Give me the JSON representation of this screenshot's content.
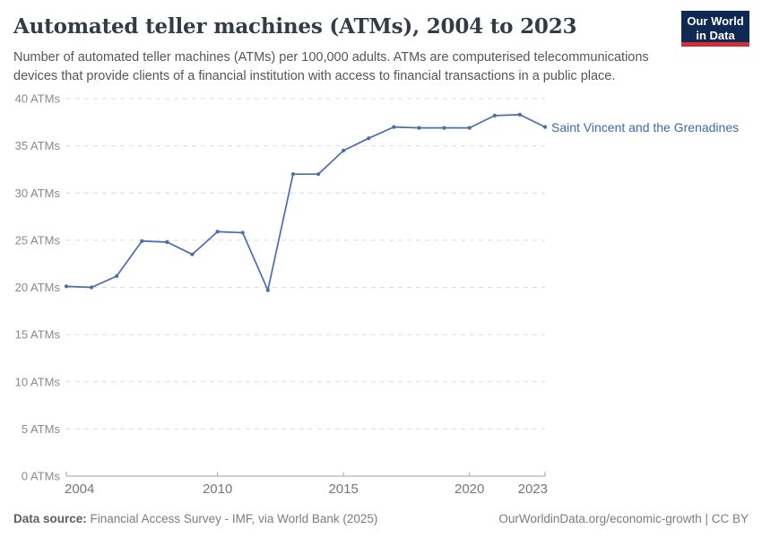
{
  "header": {
    "title": "Automated teller machines (ATMs), 2004 to 2023",
    "subtitle_lines": [
      "Number of automated teller machines (ATMs) per 100,000 adults. ATMs are computerised telecommunications",
      "devices that provide clients of a financial institution with access to financial transactions in a public place."
    ],
    "logo": {
      "line1": "Our World",
      "line2": "in Data",
      "bg_color": "#0f2a52",
      "bar_color": "#cf3038"
    }
  },
  "chart_data": {
    "type": "line",
    "title": "Automated teller machines (ATMs), 2004 to 2023",
    "xlabel": "",
    "ylabel": "",
    "xlim": [
      2004,
      2023
    ],
    "ylim": [
      0,
      40
    ],
    "x_ticks": [
      2004,
      2010,
      2015,
      2020,
      2023
    ],
    "y_ticks": [
      0,
      5,
      10,
      15,
      20,
      25,
      30,
      35,
      40
    ],
    "y_tick_suffix": " ATMs",
    "grid": "horizontal-dashed",
    "legend": "line-end-label",
    "series": [
      {
        "name": "Saint Vincent and the Grenadines",
        "color": "#4a6dae",
        "x": [
          2004,
          2005,
          2006,
          2007,
          2008,
          2009,
          2010,
          2011,
          2012,
          2013,
          2014,
          2015,
          2016,
          2017,
          2018,
          2019,
          2020,
          2021,
          2022,
          2023
        ],
        "values": [
          20.1,
          20.0,
          21.2,
          24.9,
          24.8,
          23.5,
          25.9,
          25.8,
          19.7,
          32.0,
          32.0,
          34.5,
          35.8,
          37.0,
          36.9,
          36.9,
          36.9,
          38.2,
          38.3,
          37.0
        ]
      }
    ]
  },
  "footer": {
    "source_label": "Data source:",
    "source_text": " Financial Access Survey - IMF, via World Bank (2025)",
    "attribution": "OurWorldinData.org/economic-growth | CC BY"
  }
}
